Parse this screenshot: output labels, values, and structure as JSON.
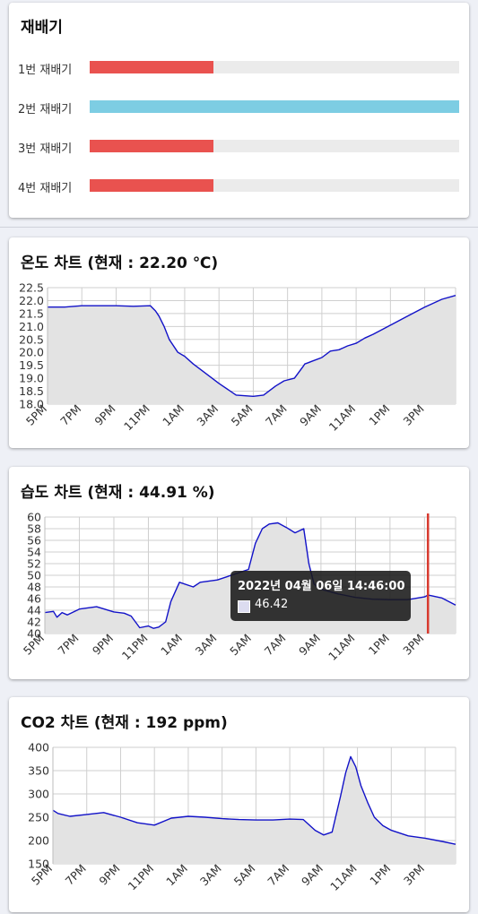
{
  "cultivators": {
    "title": "재배기",
    "items": [
      {
        "label": "1번 재배기",
        "level": 0.335,
        "color": "#e9524f"
      },
      {
        "label": "2번 재배기",
        "level": 1.0,
        "color": "#7dcde3"
      },
      {
        "label": "3번 재배기",
        "level": 0.335,
        "color": "#e9524f"
      },
      {
        "label": "4번 재배기",
        "level": 0.335,
        "color": "#e9524f"
      }
    ]
  },
  "chart_data": [
    {
      "type": "area",
      "title": "온도 차트 (현재 : 22.20 ℃)",
      "ylim": [
        18.0,
        22.5
      ],
      "yticks": [
        "18.0",
        "18.5",
        "19.0",
        "19.5",
        "20.0",
        "20.5",
        "21.0",
        "21.5",
        "22.0",
        "22.5"
      ],
      "xticks": [
        "5PM",
        "7PM",
        "9PM",
        "11PM",
        "1AM",
        "3AM",
        "5AM",
        "7AM",
        "9AM",
        "11AM",
        "1PM",
        "3PM"
      ],
      "xlim": [
        0,
        23.8
      ],
      "grid": true,
      "line_color": "#1212c8",
      "fill_color": "#e3e3e3",
      "series": [
        {
          "x": [
            0,
            1,
            2,
            3,
            4,
            5,
            6,
            6.3,
            6.5,
            6.8,
            7.1,
            7.6,
            8,
            8.5,
            9,
            10,
            11,
            12,
            12.6,
            13.3,
            13.8,
            14.4,
            14.9,
            15,
            15.2,
            15.4,
            16,
            16.5,
            17,
            17.5,
            18,
            18.5,
            19,
            20,
            21,
            22,
            23,
            23.8
          ],
          "y": [
            21.75,
            21.75,
            21.8,
            21.8,
            21.8,
            21.78,
            21.8,
            21.6,
            21.4,
            21.0,
            20.5,
            20.0,
            19.85,
            19.55,
            19.3,
            18.8,
            18.35,
            18.3,
            18.35,
            18.7,
            18.9,
            19.0,
            19.45,
            19.55,
            19.6,
            19.65,
            19.8,
            20.05,
            20.1,
            20.25,
            20.35,
            20.55,
            20.7,
            21.05,
            21.4,
            21.75,
            22.05,
            22.2
          ]
        }
      ]
    },
    {
      "type": "area",
      "title": "습도 차트 (현재 : 44.91 %)",
      "ylim": [
        40,
        60
      ],
      "yticks": [
        "40",
        "42",
        "44",
        "46",
        "48",
        "50",
        "52",
        "54",
        "56",
        "58",
        "60"
      ],
      "xticks": [
        "5PM",
        "7PM",
        "9PM",
        "11PM",
        "1AM",
        "3AM",
        "5AM",
        "7AM",
        "9AM",
        "11AM",
        "1PM",
        "3PM"
      ],
      "xlim": [
        0,
        23.8
      ],
      "grid": true,
      "line_color": "#1212c8",
      "fill_color": "#e3e3e3",
      "series": [
        {
          "x": [
            0,
            0.5,
            0.7,
            1,
            1.3,
            2,
            3,
            4,
            4.6,
            5,
            5.5,
            6,
            6.3,
            6.6,
            7,
            7.3,
            7.8,
            8.6,
            9,
            10,
            11,
            11.8,
            12.2,
            12.6,
            13,
            13.5,
            14,
            14.5,
            15,
            15.3,
            15.6,
            16,
            17,
            18,
            19,
            20,
            21,
            22,
            22.2,
            22.4,
            23,
            23.8
          ],
          "y": [
            43.6,
            43.8,
            42.8,
            43.6,
            43.2,
            44.2,
            44.6,
            43.7,
            43.5,
            43.0,
            41.0,
            41.3,
            40.9,
            41.1,
            42.0,
            45.5,
            48.8,
            48.0,
            48.8,
            49.2,
            50.2,
            51.0,
            55.5,
            58.0,
            58.8,
            59.0,
            58.2,
            57.3,
            58.0,
            52.0,
            48.5,
            47.6,
            46.8,
            46.2,
            45.9,
            45.8,
            45.8,
            46.3,
            46.6,
            46.5,
            46.1,
            44.9
          ]
        }
      ],
      "marker_x": 22.2,
      "marker_color": "#d83a2f",
      "tooltip": {
        "title": "2022년 04월 06일 14:46:00",
        "value": "46.42"
      }
    },
    {
      "type": "area",
      "title": "CO2 차트 (현재 : 192 ppm)",
      "ylim": [
        150,
        400
      ],
      "yticks": [
        "150",
        "200",
        "250",
        "300",
        "350",
        "400"
      ],
      "xticks": [
        "5PM",
        "7PM",
        "9PM",
        "11PM",
        "1AM",
        "3AM",
        "5AM",
        "7AM",
        "9AM",
        "11AM",
        "1PM",
        "3PM"
      ],
      "xlim": [
        0,
        23.8
      ],
      "grid": true,
      "line_color": "#1212c8",
      "fill_color": "#e3e3e3",
      "series": [
        {
          "x": [
            0,
            0.3,
            1,
            2,
            3,
            4,
            5,
            6,
            7,
            8,
            9,
            10,
            11,
            12,
            13,
            14,
            14.8,
            15.5,
            16,
            16.5,
            17,
            17.3,
            17.6,
            17.9,
            18.2,
            18.6,
            19,
            19.5,
            20,
            21,
            22,
            23,
            23.8
          ],
          "y": [
            265,
            258,
            252,
            256,
            260,
            250,
            238,
            233,
            248,
            252,
            250,
            247,
            245,
            244,
            244,
            246,
            245,
            222,
            212,
            218,
            295,
            345,
            380,
            358,
            318,
            282,
            250,
            232,
            222,
            210,
            205,
            198,
            192
          ]
        }
      ]
    }
  ]
}
